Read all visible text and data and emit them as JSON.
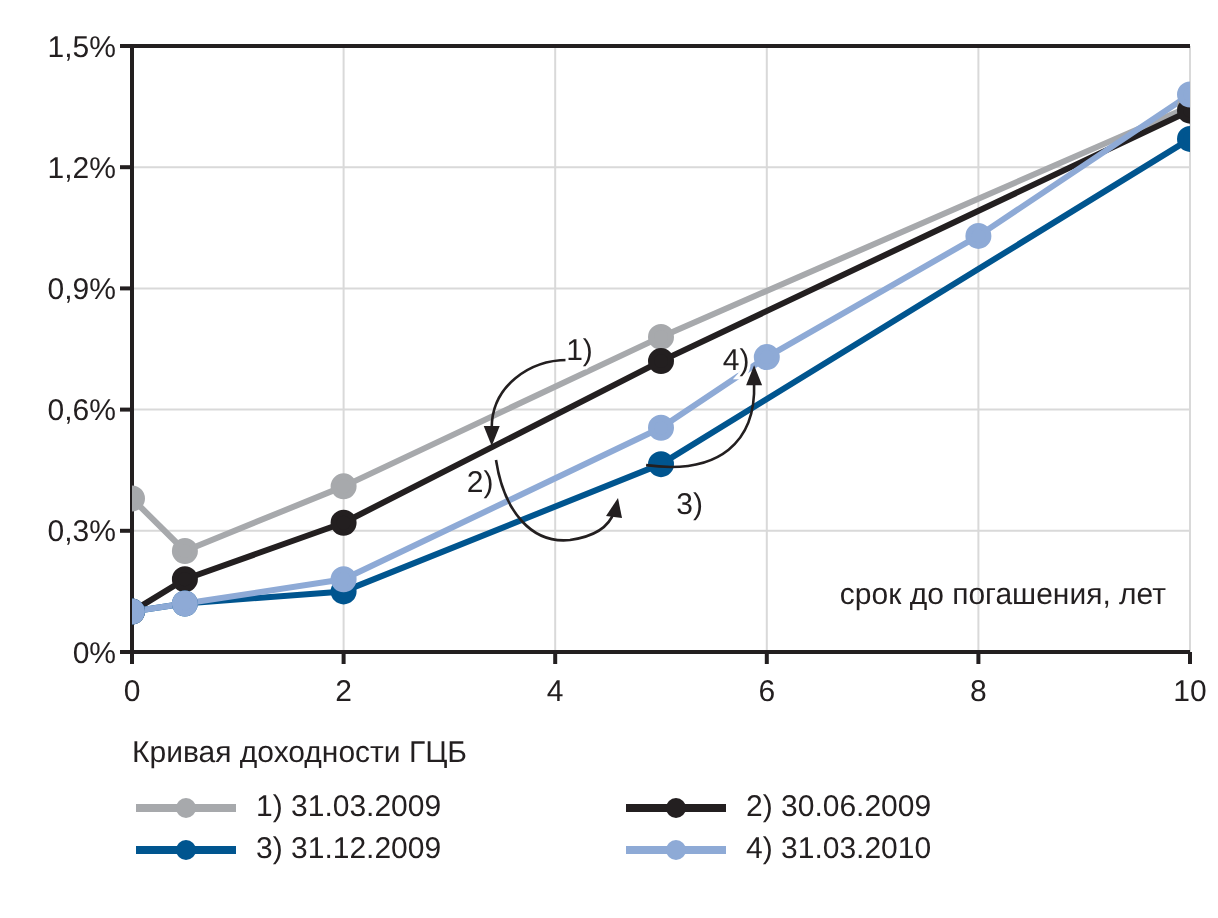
{
  "chart_data": {
    "type": "line",
    "xlabel": "срок до погашения, лет",
    "legend_title": "Кривая доходности ГЦБ",
    "legend": "bottom",
    "grid": true,
    "marker": "circle",
    "line_style": "solid",
    "xlim": [
      0,
      10
    ],
    "xticks": [
      0,
      2,
      4,
      6,
      8,
      10
    ],
    "ylim": [
      0,
      1.5
    ],
    "yticks": [
      {
        "value": 0,
        "label": "0%"
      },
      {
        "value": 0.3,
        "label": "0,3%"
      },
      {
        "value": 0.6,
        "label": "0,6%"
      },
      {
        "value": 0.9,
        "label": "0,9%"
      },
      {
        "value": 1.2,
        "label": "1,2%"
      },
      {
        "value": 1.5,
        "label": "1,5%"
      }
    ],
    "series": [
      {
        "name": "1) 31.03.2009",
        "color": "#a7a9ac",
        "x": [
          0,
          0.5,
          2,
          5,
          10
        ],
        "values": [
          0.38,
          0.25,
          0.41,
          0.78,
          1.35
        ]
      },
      {
        "name": "2) 30.06.2009",
        "color": "#231f20",
        "x": [
          0,
          0.5,
          2,
          5,
          10
        ],
        "values": [
          0.1,
          0.18,
          0.32,
          0.72,
          1.34
        ]
      },
      {
        "name": "3) 31.12.2009",
        "color": "#00558f",
        "x": [
          0,
          0.5,
          2,
          5,
          10
        ],
        "values": [
          0.1,
          0.12,
          0.15,
          0.465,
          1.27
        ]
      },
      {
        "name": "4) 31.03.2010",
        "color": "#8eaad6",
        "x": [
          0,
          0.5,
          2,
          5,
          6,
          8,
          10
        ],
        "values": [
          0.1,
          0.12,
          0.18,
          0.555,
          0.73,
          1.03,
          1.38
        ]
      }
    ],
    "annotations": [
      {
        "text": "1)",
        "x": 3.4,
        "y": 0.51
      },
      "2)",
      "3)",
      {
        "text": "4)",
        "x": 5.88,
        "y": 0.71
      }
    ]
  }
}
